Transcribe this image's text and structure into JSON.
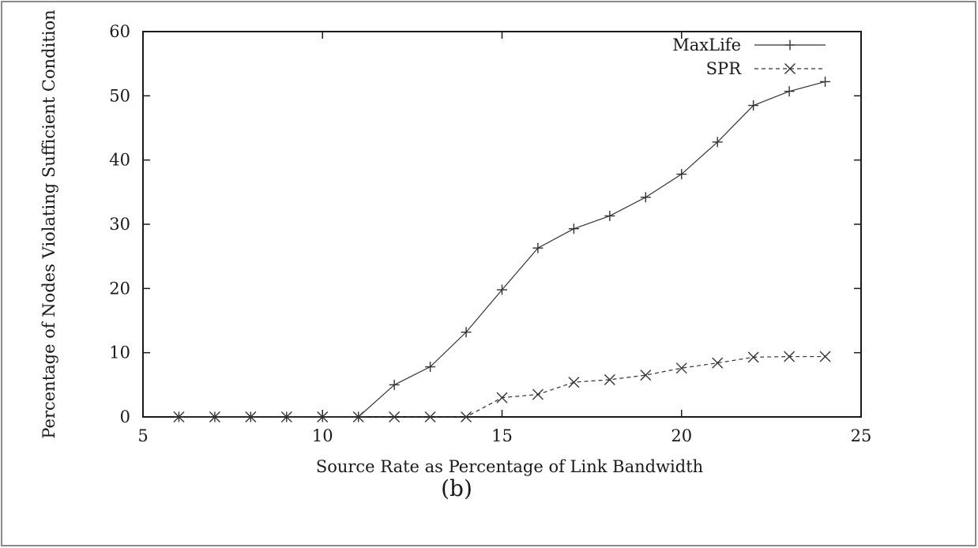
{
  "chart_data": {
    "type": "line",
    "caption": "(b)",
    "xlabel": "Source Rate as Percentage of Link Bandwidth",
    "ylabel": "Percentage of Nodes Violating Sufficient Condition",
    "xlim": [
      5,
      25
    ],
    "ylim": [
      0,
      60
    ],
    "x_ticks": [
      5,
      10,
      15,
      20,
      25
    ],
    "y_ticks": [
      0,
      10,
      20,
      30,
      40,
      50,
      60
    ],
    "grid": false,
    "legend_position": "top-right",
    "series": [
      {
        "name": "MaxLife",
        "marker": "plus",
        "line_style": "solid",
        "color": "#333333",
        "x": [
          6,
          7,
          8,
          9,
          10,
          11,
          12,
          13,
          14,
          15,
          16,
          17,
          18,
          19,
          20,
          21,
          22,
          23,
          24
        ],
        "y": [
          0,
          0,
          0,
          0,
          0,
          0,
          5,
          7.8,
          13.2,
          19.8,
          26.3,
          29.3,
          31.3,
          34.2,
          37.8,
          42.8,
          48.5,
          50.7,
          52.2
        ]
      },
      {
        "name": "SPR",
        "marker": "cross",
        "line_style": "dashed",
        "color": "#333333",
        "x": [
          6,
          7,
          8,
          9,
          10,
          11,
          12,
          13,
          14,
          15,
          16,
          17,
          18,
          19,
          20,
          21,
          22,
          23,
          24
        ],
        "y": [
          0,
          0,
          0,
          0,
          0,
          0,
          0,
          0,
          0,
          3,
          3.5,
          5.4,
          5.8,
          6.5,
          7.6,
          8.4,
          9.3,
          9.4,
          9.4
        ]
      }
    ]
  }
}
